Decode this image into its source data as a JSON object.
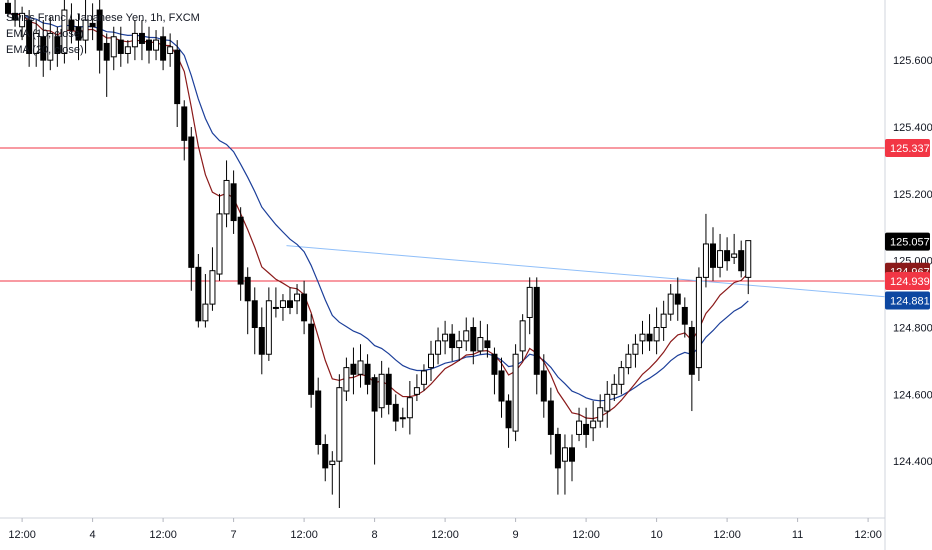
{
  "symbol_title": "Swiss Franc / Japanese Yen, 1h, FXCM",
  "legend": {
    "ema1": "EMA (10, close)",
    "ema2": "EMA (20, close)"
  },
  "colors": {
    "bull_body": "#ffffff",
    "bear_body": "#000000",
    "wick": "#000000",
    "hline": "#f23645",
    "trendline": "#90bff9",
    "ema_fast": "#8b1a1a",
    "ema_slow": "#1c3f9a",
    "axis_text": "#131722"
  },
  "price_tags": [
    {
      "label": "125.337",
      "value": 125.337,
      "bg": "#f23645"
    },
    {
      "label": "125.057",
      "value": 125.057,
      "bg": "#000000"
    },
    {
      "label": "124.967",
      "value": 124.967,
      "bg": "#8b1a1a"
    },
    {
      "label": "124.939",
      "value": 124.939,
      "bg": "#f23645"
    },
    {
      "label": "124.881",
      "value": 124.881,
      "bg": "#0d47a1"
    }
  ],
  "chart_data": {
    "type": "candlestick",
    "y_range": [
      124.23,
      125.78
    ],
    "y_ticks": [
      {
        "label": "125.600",
        "value": 125.6
      },
      {
        "label": "125.400",
        "value": 125.4
      },
      {
        "label": "125.200",
        "value": 125.2
      },
      {
        "label": "125.000",
        "value": 125.0
      },
      {
        "label": "124.800",
        "value": 124.8
      },
      {
        "label": "124.600",
        "value": 124.6
      },
      {
        "label": "124.400",
        "value": 124.4
      }
    ],
    "x_ticks": [
      {
        "label": "12:00",
        "index": 2
      },
      {
        "label": "4",
        "index": 12
      },
      {
        "label": "12:00",
        "index": 22
      },
      {
        "label": "7",
        "index": 32
      },
      {
        "label": "12:00",
        "index": 42
      },
      {
        "label": "8",
        "index": 52
      },
      {
        "label": "12:00",
        "index": 62
      },
      {
        "label": "9",
        "index": 72
      },
      {
        "label": "12:00",
        "index": 82
      },
      {
        "label": "10",
        "index": 92
      },
      {
        "label": "12:00",
        "index": 102
      },
      {
        "label": "11",
        "index": 112
      },
      {
        "label": "12:00",
        "index": 122
      }
    ],
    "horizontal_lines": [
      125.337,
      124.939
    ],
    "trendline": {
      "from": {
        "index": 39.5,
        "value": 125.045
      },
      "to": {
        "index": 131,
        "value": 124.88
      }
    },
    "candles": [
      [
        125.77,
        125.74,
        125.8,
        125.73
      ],
      [
        125.74,
        125.72,
        125.78,
        125.7
      ],
      [
        125.7,
        125.74,
        125.76,
        125.66
      ],
      [
        125.72,
        125.62,
        125.75,
        125.58
      ],
      [
        125.62,
        125.68,
        125.72,
        125.58
      ],
      [
        125.67,
        125.6,
        125.72,
        125.55
      ],
      [
        125.6,
        125.68,
        125.73,
        125.57
      ],
      [
        125.67,
        125.62,
        125.7,
        125.58
      ],
      [
        125.62,
        125.75,
        125.78,
        125.59
      ],
      [
        125.72,
        125.69,
        125.77,
        125.65
      ],
      [
        125.7,
        125.66,
        125.74,
        125.6
      ],
      [
        125.66,
        125.72,
        125.79,
        125.62
      ],
      [
        125.71,
        125.7,
        125.77,
        125.66
      ],
      [
        125.75,
        125.63,
        125.78,
        125.56
      ],
      [
        125.65,
        125.6,
        125.68,
        125.49
      ],
      [
        125.61,
        125.67,
        125.7,
        125.57
      ],
      [
        125.66,
        125.62,
        125.7,
        125.58
      ],
      [
        125.62,
        125.64,
        125.66,
        125.59
      ],
      [
        125.64,
        125.68,
        125.72,
        125.6
      ],
      [
        125.68,
        125.65,
        125.72,
        125.6
      ],
      [
        125.66,
        125.63,
        125.7,
        125.59
      ],
      [
        125.63,
        125.66,
        125.69,
        125.6
      ],
      [
        125.67,
        125.6,
        125.7,
        125.57
      ],
      [
        125.62,
        125.64,
        125.68,
        125.58
      ],
      [
        125.63,
        125.47,
        125.66,
        125.4
      ],
      [
        125.46,
        125.36,
        125.48,
        125.3
      ],
      [
        125.37,
        124.98,
        125.4,
        124.91
      ],
      [
        124.98,
        124.82,
        125.02,
        124.8
      ],
      [
        124.82,
        124.87,
        124.96,
        124.8
      ],
      [
        124.87,
        124.97,
        125.04,
        124.85
      ],
      [
        124.96,
        125.14,
        125.2,
        124.94
      ],
      [
        125.14,
        125.24,
        125.3,
        125.1
      ],
      [
        125.23,
        125.12,
        125.27,
        125.08
      ],
      [
        125.13,
        124.93,
        125.16,
        124.88
      ],
      [
        124.95,
        124.88,
        124.98,
        124.78
      ],
      [
        124.88,
        124.8,
        124.92,
        124.72
      ],
      [
        124.8,
        124.72,
        124.86,
        124.66
      ],
      [
        124.72,
        124.88,
        124.92,
        124.7
      ],
      [
        124.86,
        124.86,
        124.92,
        124.83
      ],
      [
        124.86,
        124.88,
        124.9,
        124.82
      ],
      [
        124.88,
        124.86,
        124.92,
        124.84
      ],
      [
        124.88,
        124.9,
        124.93,
        124.84
      ],
      [
        124.9,
        124.82,
        124.94,
        124.78
      ],
      [
        124.81,
        124.6,
        124.84,
        124.56
      ],
      [
        124.61,
        124.45,
        124.65,
        124.42
      ],
      [
        124.45,
        124.38,
        124.48,
        124.34
      ],
      [
        124.39,
        124.4,
        124.43,
        124.3
      ],
      [
        124.4,
        124.62,
        124.66,
        124.26
      ],
      [
        124.61,
        124.68,
        124.71,
        124.58
      ],
      [
        124.69,
        124.66,
        124.74,
        124.6
      ],
      [
        124.66,
        124.7,
        124.75,
        124.62
      ],
      [
        124.69,
        124.63,
        124.72,
        124.6
      ],
      [
        124.65,
        124.55,
        124.66,
        124.39
      ],
      [
        124.56,
        124.66,
        124.7,
        124.53
      ],
      [
        124.66,
        124.57,
        124.68,
        124.54
      ],
      [
        124.57,
        124.52,
        124.6,
        124.49
      ],
      [
        124.53,
        124.53,
        124.56,
        124.5
      ],
      [
        124.53,
        124.59,
        124.64,
        124.48
      ],
      [
        124.6,
        124.62,
        124.66,
        124.58
      ],
      [
        124.63,
        124.67,
        124.69,
        124.61
      ],
      [
        124.68,
        124.72,
        124.76,
        124.64
      ],
      [
        124.72,
        124.76,
        124.8,
        124.69
      ],
      [
        124.76,
        124.78,
        124.82,
        124.72
      ],
      [
        124.78,
        124.74,
        124.81,
        124.7
      ],
      [
        124.74,
        124.76,
        124.79,
        124.7
      ],
      [
        124.76,
        124.79,
        124.83,
        124.73
      ],
      [
        124.8,
        124.73,
        124.83,
        124.69
      ],
      [
        124.73,
        124.77,
        124.82,
        124.72
      ],
      [
        124.76,
        124.74,
        124.81,
        124.71
      ],
      [
        124.72,
        124.66,
        124.74,
        124.6
      ],
      [
        124.67,
        124.58,
        124.71,
        124.53
      ],
      [
        124.58,
        124.5,
        124.6,
        124.44
      ],
      [
        124.49,
        124.72,
        124.75,
        124.46
      ],
      [
        124.73,
        124.82,
        124.84,
        124.7
      ],
      [
        124.83,
        124.92,
        124.95,
        124.78
      ],
      [
        124.92,
        124.66,
        124.95,
        124.6
      ],
      [
        124.67,
        124.58,
        124.72,
        124.53
      ],
      [
        124.58,
        124.48,
        124.62,
        124.42
      ],
      [
        124.48,
        124.38,
        124.5,
        124.3
      ],
      [
        124.4,
        124.44,
        124.48,
        124.3
      ],
      [
        124.44,
        124.4,
        124.48,
        124.34
      ],
      [
        124.48,
        124.52,
        124.56,
        124.46
      ],
      [
        124.51,
        124.48,
        124.56,
        124.44
      ],
      [
        124.5,
        124.52,
        124.58,
        124.46
      ],
      [
        124.52,
        124.56,
        124.6,
        124.5
      ],
      [
        124.55,
        124.6,
        124.64,
        124.5
      ],
      [
        124.6,
        124.63,
        124.66,
        124.58
      ],
      [
        124.63,
        124.68,
        124.7,
        124.6
      ],
      [
        124.68,
        124.72,
        124.75,
        124.66
      ],
      [
        124.72,
        124.75,
        124.78,
        124.68
      ],
      [
        124.76,
        124.78,
        124.82,
        124.72
      ],
      [
        124.78,
        124.76,
        124.84,
        124.73
      ],
      [
        124.76,
        124.8,
        124.86,
        124.72
      ],
      [
        124.8,
        124.84,
        124.88,
        124.76
      ],
      [
        124.84,
        124.9,
        124.93,
        124.82
      ],
      [
        124.9,
        124.87,
        124.95,
        124.82
      ],
      [
        124.86,
        124.81,
        124.89,
        124.77
      ],
      [
        124.8,
        124.66,
        124.82,
        124.55
      ],
      [
        124.68,
        124.95,
        124.98,
        124.64
      ],
      [
        124.95,
        125.05,
        125.14,
        124.92
      ],
      [
        125.05,
        124.98,
        125.1,
        124.94
      ],
      [
        124.98,
        125.03,
        125.08,
        124.95
      ],
      [
        125.03,
        125.0,
        125.07,
        124.97
      ],
      [
        125.01,
        125.02,
        125.08,
        124.99
      ],
      [
        125.03,
        124.97,
        125.06,
        124.95
      ],
      [
        124.95,
        125.06,
        125.06,
        124.9
      ]
    ]
  }
}
